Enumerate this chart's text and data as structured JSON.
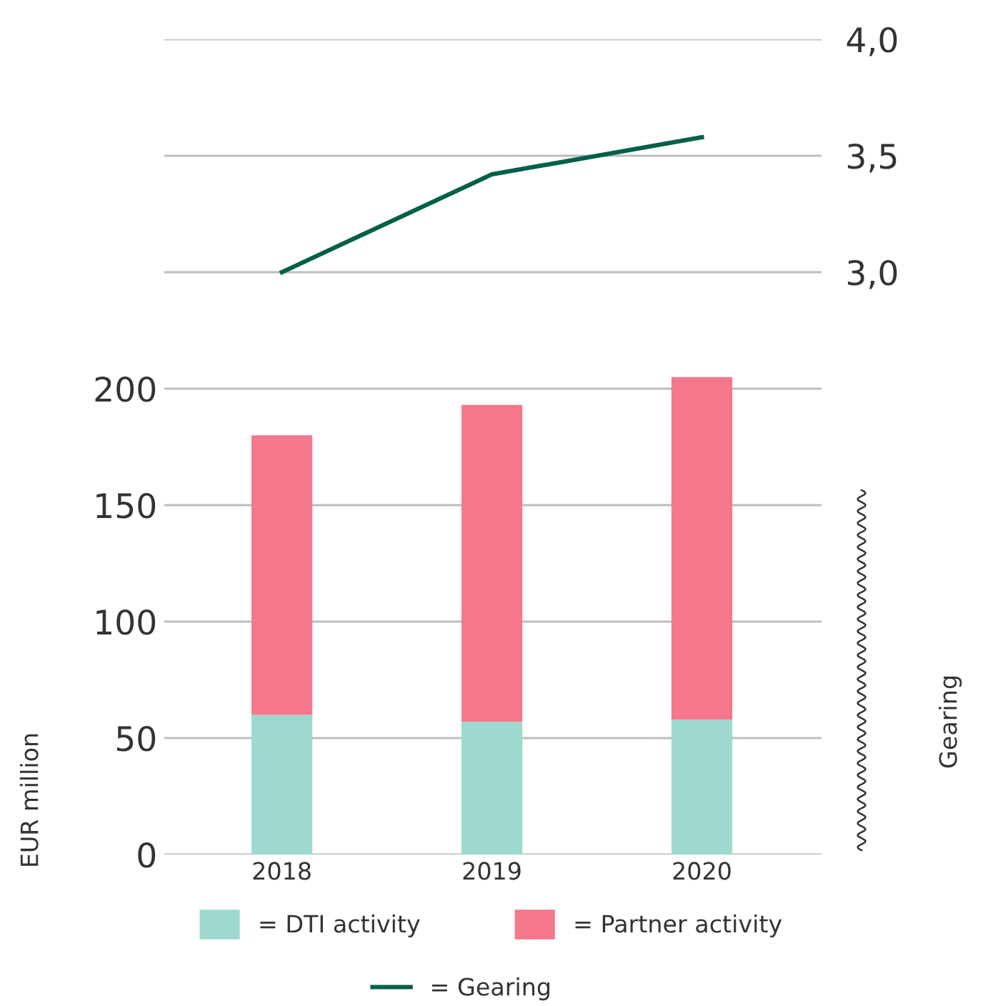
{
  "chart_data": {
    "type": "bar",
    "stacked": true,
    "categories": [
      "2018",
      "2019",
      "2020"
    ],
    "series": [
      {
        "name": "= DTI activity",
        "color": "#9dd9cf",
        "values": [
          60,
          57,
          58
        ]
      },
      {
        "name": "= Partner activity",
        "color": "#f4778b",
        "values": [
          120,
          136,
          147
        ]
      },
      {
        "name": "= Gearing",
        "type": "line",
        "axis": "y2",
        "color": "#006048",
        "values": [
          3.0,
          3.42,
          3.58
        ]
      }
    ],
    "ylabel": "EUR million",
    "y2label": "Gearing",
    "ylim": [
      0,
      350
    ],
    "yticks": [
      0,
      50,
      100,
      150,
      200
    ],
    "y2lim": [
      0.5,
      4.0
    ],
    "y2ticks": [
      {
        "value": 3.0,
        "label": "3,0"
      },
      {
        "value": 3.5,
        "label": "3,5"
      },
      {
        "value": 4.0,
        "label": "4,0"
      }
    ],
    "grid": "y",
    "legend": "bottom",
    "marker": "none",
    "line_style": "solid"
  }
}
